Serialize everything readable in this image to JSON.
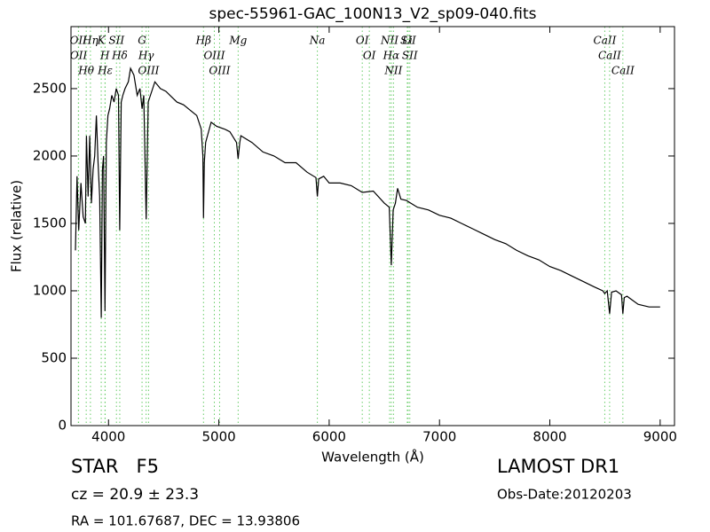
{
  "chart_data": {
    "type": "line",
    "title": "spec-55961-GAC_100N13_V2_sp09-040.fits",
    "x_label": "Wavelength (Å)",
    "y_label": "Flux (relative)",
    "xlim": [
      3660,
      9130
    ],
    "ylim": [
      0,
      2960
    ],
    "xticks": [
      4000,
      5000,
      6000,
      7000,
      8000,
      9000
    ],
    "yticks": [
      0,
      500,
      1000,
      1500,
      2000,
      2500
    ],
    "color": "#000000",
    "line_color": "#66cc66",
    "x": [
      3700,
      3715,
      3730,
      3750,
      3770,
      3790,
      3800,
      3815,
      3830,
      3845,
      3860,
      3875,
      3890,
      3905,
      3920,
      3934,
      3945,
      3955,
      3968,
      3980,
      3995,
      4010,
      4030,
      4050,
      4070,
      4090,
      4102,
      4115,
      4130,
      4150,
      4180,
      4200,
      4230,
      4260,
      4285,
      4304,
      4320,
      4341,
      4360,
      4380,
      4420,
      4470,
      4520,
      4570,
      4620,
      4680,
      4740,
      4800,
      4840,
      4855,
      4861,
      4868,
      4880,
      4930,
      4980,
      5050,
      5100,
      5160,
      5175,
      5190,
      5200,
      5300,
      5400,
      5500,
      5600,
      5700,
      5800,
      5880,
      5893,
      5905,
      5950,
      6000,
      6100,
      6200,
      6300,
      6400,
      6500,
      6545,
      6563,
      6580,
      6600,
      6620,
      6650,
      6700,
      6800,
      6900,
      7000,
      7100,
      7200,
      7300,
      7400,
      7500,
      7600,
      7700,
      7800,
      7900,
      8000,
      8100,
      8200,
      8300,
      8400,
      8480,
      8498,
      8520,
      8542,
      8560,
      8600,
      8650,
      8662,
      8675,
      8700,
      8800,
      8900,
      9000
    ],
    "values": [
      1300,
      1850,
      1450,
      1800,
      1550,
      1500,
      2150,
      1700,
      2150,
      1650,
      1900,
      2000,
      2300,
      1950,
      1700,
      800,
      1900,
      2000,
      850,
      2100,
      2300,
      2350,
      2450,
      2400,
      2500,
      2450,
      1450,
      2400,
      2450,
      2500,
      2550,
      2650,
      2600,
      2450,
      2500,
      2350,
      2450,
      1530,
      2400,
      2450,
      2550,
      2500,
      2480,
      2440,
      2400,
      2380,
      2340,
      2300,
      2200,
      2000,
      1540,
      1950,
      2100,
      2250,
      2220,
      2200,
      2180,
      2100,
      1980,
      2100,
      2150,
      2100,
      2030,
      2000,
      1950,
      1950,
      1880,
      1840,
      1700,
      1830,
      1850,
      1800,
      1800,
      1780,
      1730,
      1740,
      1650,
      1620,
      1190,
      1600,
      1650,
      1760,
      1680,
      1670,
      1620,
      1600,
      1560,
      1540,
      1500,
      1460,
      1420,
      1380,
      1350,
      1300,
      1260,
      1230,
      1180,
      1150,
      1110,
      1070,
      1030,
      1000,
      980,
      1000,
      830,
      990,
      1000,
      970,
      830,
      950,
      960,
      900,
      880,
      880
    ],
    "lines": [
      {
        "wavelength": 3727,
        "label": "OII"
      },
      {
        "wavelength": 3729,
        "label": "OII"
      },
      {
        "wavelength": 3798,
        "label": "Hθ"
      },
      {
        "wavelength": 3836,
        "label": "Hη"
      },
      {
        "wavelength": 3934,
        "label": "K"
      },
      {
        "wavelength": 3968,
        "label": "H"
      },
      {
        "wavelength": 3970,
        "label": "Hε"
      },
      {
        "wavelength": 4072,
        "label": "SII"
      },
      {
        "wavelength": 4102,
        "label": "Hδ"
      },
      {
        "wavelength": 4304,
        "label": "G"
      },
      {
        "wavelength": 4341,
        "label": "Hγ"
      },
      {
        "wavelength": 4363,
        "label": "OIII"
      },
      {
        "wavelength": 4861,
        "label": "Hβ"
      },
      {
        "wavelength": 4959,
        "label": "OIII"
      },
      {
        "wavelength": 5007,
        "label": "OIII"
      },
      {
        "wavelength": 5175,
        "label": "Mg"
      },
      {
        "wavelength": 5893,
        "label": "Na"
      },
      {
        "wavelength": 6300,
        "label": "OI"
      },
      {
        "wavelength": 6364,
        "label": "OI"
      },
      {
        "wavelength": 6548,
        "label": "NII"
      },
      {
        "wavelength": 6563,
        "label": "Hα"
      },
      {
        "wavelength": 6583,
        "label": "NII"
      },
      {
        "wavelength": 6708,
        "label": "Li"
      },
      {
        "wavelength": 6716,
        "label": "SII"
      },
      {
        "wavelength": 6731,
        "label": "SII"
      },
      {
        "wavelength": 8498,
        "label": "CaII"
      },
      {
        "wavelength": 8542,
        "label": "CaII"
      },
      {
        "wavelength": 8662,
        "label": "CaII"
      }
    ],
    "info": {
      "class": "STAR   F5",
      "cz": "cz = 20.9 ± 23.3",
      "coords": "RA = 101.67687, DEC = 13.93806",
      "survey": "LAMOST DR1",
      "obs_date": "Obs-Date:20120203"
    }
  }
}
